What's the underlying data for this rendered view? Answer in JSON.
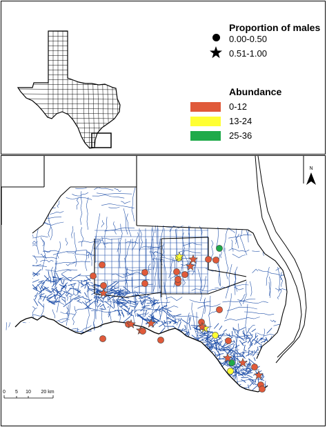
{
  "legend": {
    "proportion_title": "Proportion of males",
    "proportion_items": [
      {
        "symbol": "circle",
        "label": "0.00-0.50"
      },
      {
        "symbol": "star",
        "label": "0.51-1.00"
      }
    ],
    "abundance_title": "Abundance",
    "abundance_items": [
      {
        "label": "0-12",
        "color": "#e05a3a"
      },
      {
        "label": "13-24",
        "color": "#ffff33"
      },
      {
        "label": "25-36",
        "color": "#1faa4a"
      }
    ]
  },
  "north_label": "N",
  "scale_bar": {
    "ticks": [
      "0",
      "5",
      "10",
      "20 km"
    ]
  },
  "colors": {
    "roads": "#1f4fa8",
    "outline": "#000000",
    "texas_fill": "#ffffff"
  },
  "points": [
    {
      "symbol": "circle",
      "abundance": "0-12"
    },
    {
      "symbol": "circle",
      "abundance": "0-12"
    },
    {
      "symbol": "circle",
      "abundance": "0-12"
    },
    {
      "symbol": "star",
      "abundance": "0-12"
    },
    {
      "symbol": "circle",
      "abundance": "0-12"
    },
    {
      "symbol": "circle",
      "abundance": "0-12"
    },
    {
      "symbol": "star",
      "abundance": "0-12"
    },
    {
      "symbol": "circle",
      "abundance": "0-12"
    },
    {
      "symbol": "circle",
      "abundance": "0-12"
    },
    {
      "symbol": "star",
      "abundance": "0-12"
    },
    {
      "symbol": "circle",
      "abundance": "0-12"
    },
    {
      "symbol": "circle",
      "abundance": "0-12"
    },
    {
      "symbol": "star",
      "abundance": "0-12"
    },
    {
      "symbol": "circle",
      "abundance": "13-24"
    },
    {
      "symbol": "star",
      "abundance": "13-24"
    },
    {
      "symbol": "circle",
      "abundance": "0-12"
    },
    {
      "symbol": "circle",
      "abundance": "0-12"
    },
    {
      "symbol": "circle",
      "abundance": "0-12"
    },
    {
      "symbol": "circle",
      "abundance": "25-36"
    },
    {
      "symbol": "star",
      "abundance": "0-12"
    },
    {
      "symbol": "circle",
      "abundance": "0-12"
    },
    {
      "symbol": "circle",
      "abundance": "0-12"
    },
    {
      "symbol": "star",
      "abundance": "0-12"
    },
    {
      "symbol": "circle",
      "abundance": "0-12"
    },
    {
      "symbol": "star",
      "abundance": "13-24"
    },
    {
      "symbol": "circle",
      "abundance": "0-12"
    },
    {
      "symbol": "circle",
      "abundance": "0-12"
    },
    {
      "symbol": "star",
      "abundance": "0-12"
    },
    {
      "symbol": "circle",
      "abundance": "13-24"
    },
    {
      "symbol": "circle",
      "abundance": "25-36"
    },
    {
      "symbol": "star",
      "abundance": "0-12"
    },
    {
      "symbol": "circle",
      "abundance": "0-12"
    },
    {
      "symbol": "circle",
      "abundance": "13-24"
    },
    {
      "symbol": "star",
      "abundance": "0-12"
    },
    {
      "symbol": "circle",
      "abundance": "0-12"
    },
    {
      "symbol": "star",
      "abundance": "0-12"
    },
    {
      "symbol": "circle",
      "abundance": "0-12"
    },
    {
      "symbol": "circle",
      "abundance": "0-12"
    }
  ]
}
